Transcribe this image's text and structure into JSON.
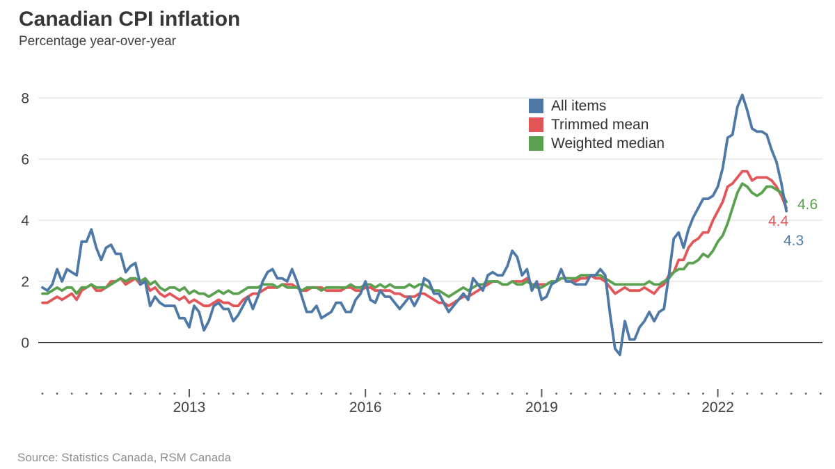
{
  "header": {
    "title": "Canadian CPI inflation",
    "subtitle": "Percentage year-over-year"
  },
  "source": {
    "label": "Source: Statistics Canada, RSM Canada"
  },
  "colors": {
    "background": "#FFFFFF",
    "title_text": "#363636",
    "axis_text": "#404040",
    "grid_line": "#E5E5E5",
    "zero_line": "#404040",
    "tick_mark": "#5A5A5A",
    "legend_text": "#333333",
    "source_text": "#8F8F8F"
  },
  "chart_data": {
    "type": "line",
    "title": "Canadian CPI inflation",
    "subtitle": "Percentage year-over-year",
    "x_frequency": "monthly",
    "x_start": "2010-07",
    "x_end": "2023-03",
    "ylim": [
      -0.6,
      8.6
    ],
    "y_ticks": [
      0,
      2,
      4,
      6,
      8
    ],
    "grid": "horizontal-only",
    "legend_position": "top-right-inside",
    "x_year_ticks": [
      {
        "label": "2013",
        "month_index": 30
      },
      {
        "label": "2016",
        "month_index": 66
      },
      {
        "label": "2019",
        "month_index": 102
      },
      {
        "label": "2022",
        "month_index": 138
      }
    ],
    "minor_tick_every_months": 3,
    "series": [
      {
        "name": "All items",
        "color": "#4E79A7",
        "end_label": "4.3",
        "values": [
          1.8,
          1.7,
          1.9,
          2.4,
          2.0,
          2.4,
          2.3,
          2.2,
          3.3,
          3.3,
          3.7,
          3.1,
          2.7,
          3.1,
          3.2,
          2.9,
          2.9,
          2.3,
          2.5,
          2.6,
          1.9,
          2.0,
          1.2,
          1.5,
          1.3,
          1.2,
          1.2,
          1.2,
          0.8,
          0.8,
          0.5,
          1.2,
          1.0,
          0.4,
          0.7,
          1.2,
          1.3,
          1.1,
          1.1,
          0.7,
          0.9,
          1.2,
          1.5,
          1.1,
          1.5,
          2.0,
          2.3,
          2.4,
          2.1,
          2.1,
          2.0,
          2.4,
          2.0,
          1.5,
          1.0,
          1.0,
          1.2,
          0.8,
          0.9,
          1.0,
          1.3,
          1.3,
          1.0,
          1.0,
          1.4,
          1.6,
          2.0,
          1.4,
          1.3,
          1.7,
          1.5,
          1.5,
          1.3,
          1.1,
          1.3,
          1.5,
          1.2,
          1.5,
          2.1,
          2.0,
          1.6,
          1.6,
          1.3,
          1.0,
          1.2,
          1.4,
          1.6,
          1.4,
          2.1,
          1.9,
          1.7,
          2.2,
          2.3,
          2.2,
          2.2,
          2.5,
          3.0,
          2.8,
          2.2,
          2.4,
          1.7,
          2.0,
          1.4,
          1.5,
          1.9,
          2.0,
          2.4,
          2.0,
          2.0,
          1.9,
          1.9,
          1.9,
          2.2,
          2.2,
          2.4,
          2.2,
          0.9,
          -0.2,
          -0.4,
          0.7,
          0.1,
          0.1,
          0.5,
          0.7,
          1.0,
          0.7,
          1.0,
          1.1,
          2.2,
          3.4,
          3.6,
          3.1,
          3.7,
          4.1,
          4.4,
          4.7,
          4.7,
          4.8,
          5.1,
          5.7,
          6.7,
          6.8,
          7.7,
          8.1,
          7.6,
          7.0,
          6.9,
          6.9,
          6.8,
          6.3,
          5.9,
          5.2,
          4.3
        ]
      },
      {
        "name": "Trimmed mean",
        "color": "#E15759",
        "end_label": "4.4",
        "values": [
          1.3,
          1.3,
          1.4,
          1.5,
          1.4,
          1.5,
          1.6,
          1.4,
          1.7,
          1.8,
          1.9,
          1.7,
          1.7,
          1.8,
          2.0,
          2.0,
          2.1,
          1.9,
          2.0,
          2.1,
          1.9,
          2.0,
          1.7,
          1.8,
          1.6,
          1.5,
          1.6,
          1.5,
          1.4,
          1.5,
          1.3,
          1.4,
          1.3,
          1.2,
          1.2,
          1.3,
          1.4,
          1.3,
          1.3,
          1.2,
          1.2,
          1.4,
          1.5,
          1.6,
          1.6,
          1.7,
          1.8,
          1.8,
          1.8,
          1.9,
          1.9,
          1.9,
          1.8,
          1.7,
          1.7,
          1.8,
          1.8,
          1.8,
          1.7,
          1.7,
          1.7,
          1.7,
          1.8,
          1.8,
          1.7,
          1.7,
          1.8,
          1.8,
          1.7,
          1.7,
          1.7,
          1.7,
          1.6,
          1.6,
          1.5,
          1.5,
          1.5,
          1.6,
          1.6,
          1.5,
          1.4,
          1.3,
          1.3,
          1.2,
          1.3,
          1.4,
          1.5,
          1.5,
          1.6,
          1.7,
          1.8,
          1.9,
          2.0,
          2.0,
          1.9,
          1.9,
          2.0,
          2.0,
          2.0,
          2.1,
          1.9,
          1.9,
          1.9,
          1.9,
          2.0,
          2.0,
          2.1,
          2.1,
          2.1,
          2.0,
          2.1,
          2.1,
          2.2,
          2.1,
          2.1,
          2.0,
          1.8,
          1.6,
          1.7,
          1.8,
          1.7,
          1.7,
          1.7,
          1.8,
          1.7,
          1.6,
          1.8,
          1.9,
          2.2,
          2.3,
          2.7,
          2.7,
          3.1,
          3.3,
          3.4,
          3.6,
          3.6,
          4.0,
          4.3,
          4.6,
          5.1,
          5.2,
          5.4,
          5.6,
          5.6,
          5.3,
          5.4,
          5.4,
          5.4,
          5.3,
          5.1,
          4.8,
          4.4
        ]
      },
      {
        "name": "Weighted median",
        "color": "#59A14F",
        "end_label": "4.6",
        "values": [
          1.6,
          1.6,
          1.7,
          1.8,
          1.7,
          1.8,
          1.8,
          1.6,
          1.8,
          1.8,
          1.9,
          1.8,
          1.8,
          1.8,
          1.9,
          2.0,
          2.1,
          2.0,
          2.1,
          2.1,
          2.0,
          2.1,
          1.9,
          2.0,
          1.8,
          1.7,
          1.8,
          1.8,
          1.7,
          1.8,
          1.6,
          1.7,
          1.6,
          1.6,
          1.5,
          1.6,
          1.7,
          1.6,
          1.7,
          1.6,
          1.6,
          1.7,
          1.8,
          1.8,
          1.8,
          1.9,
          1.9,
          1.9,
          1.8,
          1.9,
          1.8,
          1.8,
          1.8,
          1.7,
          1.8,
          1.8,
          1.8,
          1.7,
          1.8,
          1.8,
          1.8,
          1.8,
          1.8,
          1.9,
          1.8,
          1.8,
          1.9,
          1.9,
          1.8,
          1.9,
          1.8,
          1.9,
          1.8,
          1.8,
          1.8,
          1.9,
          1.8,
          1.9,
          1.9,
          1.8,
          1.7,
          1.7,
          1.6,
          1.5,
          1.6,
          1.7,
          1.8,
          1.7,
          1.8,
          1.9,
          1.9,
          2.0,
          2.0,
          2.0,
          1.9,
          1.9,
          2.0,
          1.9,
          1.9,
          2.0,
          1.9,
          1.8,
          1.8,
          1.9,
          2.0,
          2.0,
          2.1,
          2.1,
          2.1,
          2.1,
          2.2,
          2.2,
          2.2,
          2.2,
          2.2,
          2.1,
          2.0,
          1.9,
          1.9,
          1.9,
          1.9,
          1.9,
          1.9,
          1.9,
          2.0,
          1.9,
          1.9,
          2.0,
          2.1,
          2.3,
          2.4,
          2.4,
          2.6,
          2.6,
          2.7,
          2.9,
          2.8,
          3.0,
          3.3,
          3.5,
          3.9,
          4.4,
          4.9,
          5.2,
          5.1,
          4.9,
          4.8,
          4.9,
          5.1,
          5.1,
          5.0,
          4.9,
          4.6
        ]
      }
    ]
  }
}
